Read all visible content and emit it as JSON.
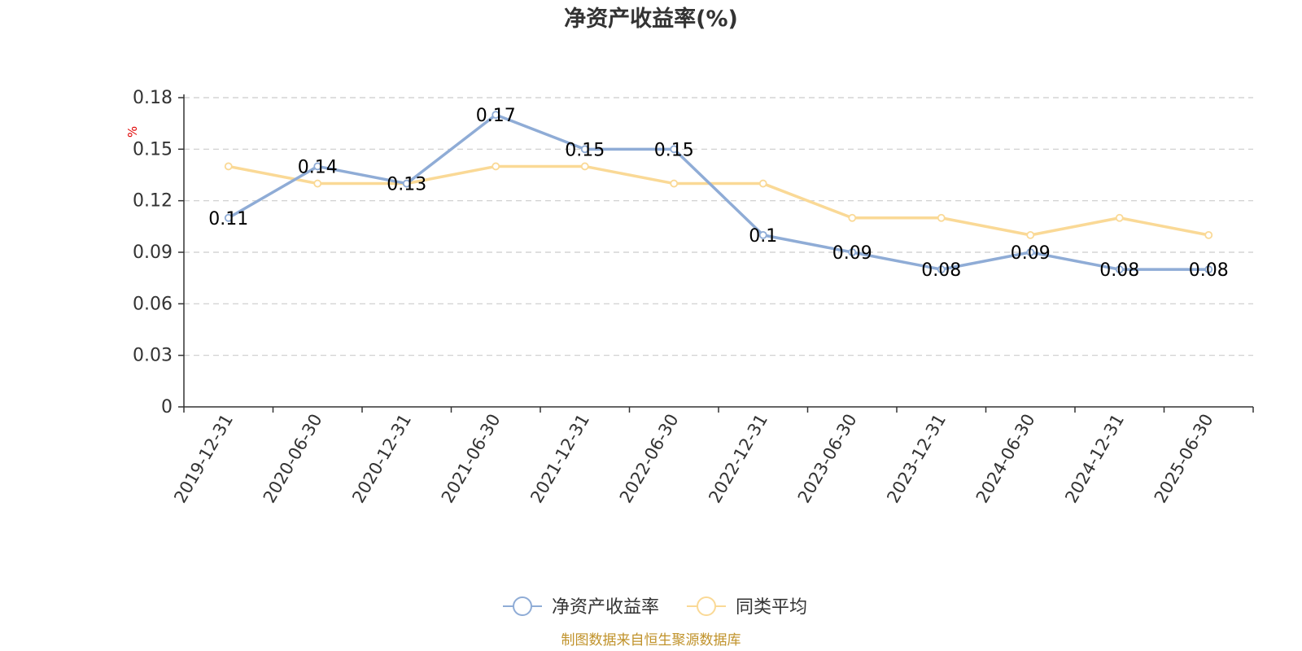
{
  "chart_data": {
    "type": "line",
    "title": "净资产收益率(%)",
    "ylabel": "%",
    "ylim": [
      0,
      0.18
    ],
    "yticks": [
      0,
      0.03,
      0.06,
      0.09,
      0.12,
      0.15,
      0.18
    ],
    "ytick_labels": [
      "0",
      "0.03",
      "0.06",
      "0.09",
      "0.12",
      "0.15",
      "0.18"
    ],
    "grid": true,
    "legend_position": "bottom-center",
    "categories": [
      "2019-12-31",
      "2020-06-30",
      "2020-12-31",
      "2021-06-30",
      "2021-12-31",
      "2022-06-30",
      "2022-12-31",
      "2023-06-30",
      "2023-12-31",
      "2024-06-30",
      "2024-12-31",
      "2025-06-30"
    ],
    "series": [
      {
        "name": "净资产收益率",
        "color": "#8facd6",
        "values": [
          0.11,
          0.14,
          0.13,
          0.17,
          0.15,
          0.15,
          0.1,
          0.09,
          0.08,
          0.09,
          0.08,
          0.08
        ],
        "labels": [
          "0.11",
          "0.14",
          "0.13",
          "0.17",
          "0.15",
          "0.15",
          "0.1",
          "0.09",
          "0.08",
          "0.09",
          "0.08",
          "0.08"
        ]
      },
      {
        "name": "同类平均",
        "color": "#fad996",
        "values": [
          0.14,
          0.13,
          0.13,
          0.14,
          0.14,
          0.13,
          0.13,
          0.11,
          0.11,
          0.1,
          0.11,
          0.1
        ]
      }
    ]
  },
  "footer": {
    "source": "制图数据来自恒生聚源数据库"
  }
}
